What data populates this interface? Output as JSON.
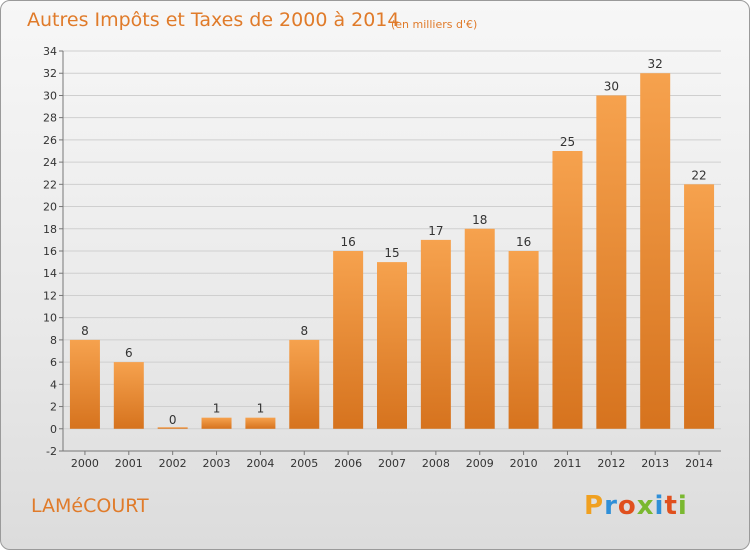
{
  "chart_data": {
    "type": "bar",
    "title": "Autres Impôts et Taxes de 2000 à 2014",
    "subtitle": "(en milliers d'€)",
    "categories": [
      "2000",
      "2001",
      "2002",
      "2003",
      "2004",
      "2005",
      "2006",
      "2007",
      "2008",
      "2009",
      "2010",
      "2011",
      "2012",
      "2013",
      "2014"
    ],
    "values": [
      8,
      6,
      0,
      1,
      1,
      8,
      16,
      15,
      17,
      18,
      16,
      25,
      30,
      32,
      22
    ],
    "ylim": [
      -2,
      34
    ],
    "yticks": [
      -2,
      0,
      2,
      4,
      6,
      8,
      10,
      12,
      14,
      16,
      18,
      20,
      22,
      24,
      26,
      28,
      30,
      32,
      34
    ],
    "grid": true,
    "colors": {
      "bar_light": "#f6a24e",
      "bar_dark": "#d6731e",
      "label": "#e07b2a",
      "grid": "#cfcfcf"
    }
  },
  "footer": {
    "city": "LAMéCOURT",
    "logo_letters": [
      "P",
      "r",
      "o",
      "x",
      "i",
      "t",
      "i"
    ],
    "logo_colors": [
      "#f0a020",
      "#2f8fd8",
      "#e0501e",
      "#7ab830",
      "#2f8fd8",
      "#e0501e",
      "#7ab830"
    ]
  }
}
